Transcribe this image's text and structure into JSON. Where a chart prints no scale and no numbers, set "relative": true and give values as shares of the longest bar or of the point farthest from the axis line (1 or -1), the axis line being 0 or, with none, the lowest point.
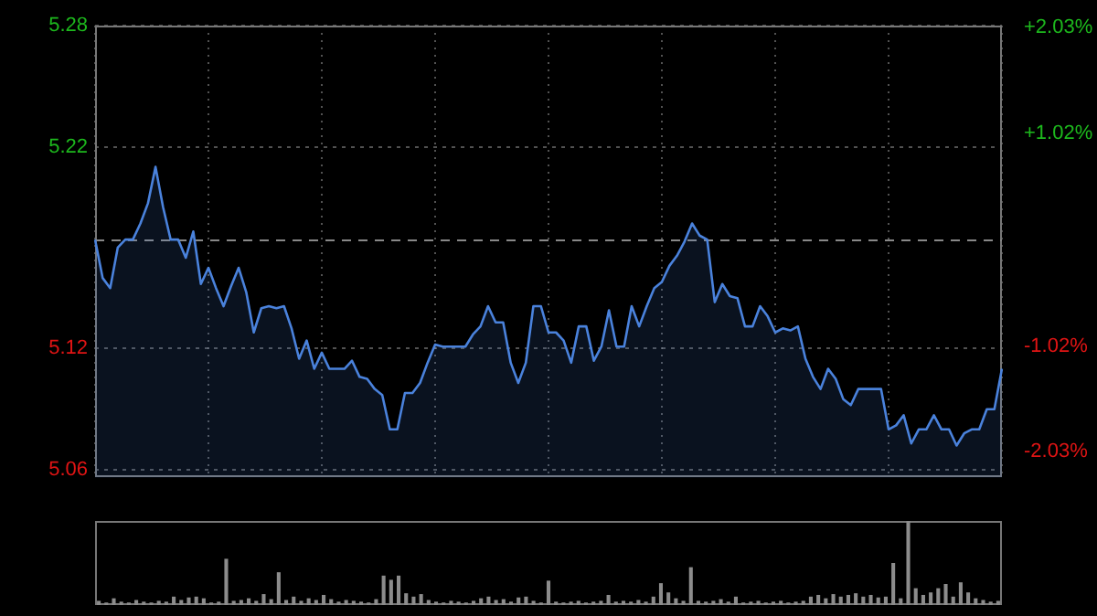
{
  "chart_data": [
    {
      "type": "area",
      "categories": [
        null,
        null,
        null,
        null,
        null,
        null,
        null,
        null,
        null,
        null,
        null,
        null,
        null,
        null,
        null,
        null,
        null,
        null,
        null,
        null,
        null,
        null,
        null,
        null,
        null,
        null,
        null,
        null,
        null,
        null,
        null,
        null,
        null,
        null,
        null,
        null,
        null,
        null,
        null,
        null,
        null,
        null,
        null,
        null,
        null,
        null,
        null,
        null,
        null,
        null,
        null,
        null,
        null,
        null,
        null,
        null,
        null,
        null,
        null,
        null,
        null,
        null,
        null,
        null,
        null,
        null,
        null,
        null,
        null,
        null,
        null,
        null,
        null,
        null,
        null,
        null,
        null,
        null,
        null,
        null,
        null,
        null,
        null,
        null,
        null,
        null,
        null,
        null,
        null,
        null,
        null,
        null,
        null,
        null,
        null,
        null,
        null,
        null,
        null,
        null,
        null,
        null,
        null,
        null,
        null,
        null,
        null,
        null,
        null,
        null,
        null,
        null,
        null,
        null,
        null,
        null,
        null,
        null,
        null,
        null,
        null
      ],
      "values": [
        5.174,
        5.155,
        5.15,
        5.17,
        5.174,
        5.174,
        5.182,
        5.192,
        5.21,
        5.19,
        5.174,
        5.174,
        5.165,
        5.178,
        5.152,
        5.16,
        5.15,
        5.141,
        5.151,
        5.16,
        5.148,
        5.128,
        5.14,
        5.141,
        5.14,
        5.141,
        5.13,
        5.115,
        5.124,
        5.11,
        5.118,
        5.11,
        5.11,
        5.11,
        5.114,
        5.106,
        5.105,
        5.1,
        5.097,
        5.08,
        5.08,
        5.098,
        5.098,
        5.103,
        5.113,
        5.122,
        5.121,
        5.121,
        5.121,
        5.121,
        5.127,
        5.131,
        5.141,
        5.133,
        5.133,
        5.113,
        5.103,
        5.113,
        5.141,
        5.141,
        5.128,
        5.128,
        5.124,
        5.113,
        5.131,
        5.131,
        5.114,
        5.121,
        5.139,
        5.121,
        5.121,
        5.141,
        5.131,
        5.141,
        5.15,
        5.153,
        5.161,
        5.166,
        5.173,
        5.182,
        5.176,
        5.174,
        5.143,
        5.152,
        5.146,
        5.145,
        5.131,
        5.131,
        5.141,
        5.136,
        5.128,
        5.13,
        5.129,
        5.131,
        5.115,
        5.106,
        5.1,
        5.11,
        5.105,
        5.095,
        5.092,
        5.1,
        5.1,
        5.1,
        5.1,
        5.08,
        5.082,
        5.087,
        5.073,
        5.08,
        5.08,
        5.087,
        5.08,
        5.08,
        5.072,
        5.078,
        5.08,
        5.08,
        5.09,
        5.09,
        5.11
      ],
      "color": "#4a82dc",
      "ylim": [
        5.056,
        5.28
      ],
      "yticks": [
        5.28,
        5.22,
        5.12,
        5.06
      ],
      "y2lim": [
        -2.28,
        2.05
      ],
      "y2ticks": [
        {
          "value": 2.03,
          "label": "+2.03%"
        },
        {
          "value": 1.02,
          "label": "+1.02%"
        },
        {
          "value": -1.02,
          "label": "-1.02%"
        },
        {
          "value": -2.03,
          "label": "-2.03%"
        }
      ],
      "ref_lines": [
        {
          "axis": "y",
          "value": 5.174,
          "color": "#888888",
          "line_style": "dashed"
        }
      ],
      "grid": true,
      "tick_labels": "y",
      "marker": "none"
    },
    {
      "type": "bar",
      "categories": [
        null,
        null,
        null,
        null,
        null,
        null,
        null,
        null,
        null,
        null,
        null,
        null,
        null,
        null,
        null,
        null,
        null,
        null,
        null,
        null,
        null,
        null,
        null,
        null,
        null,
        null,
        null,
        null,
        null,
        null,
        null,
        null,
        null,
        null,
        null,
        null,
        null,
        null,
        null,
        null,
        null,
        null,
        null,
        null,
        null,
        null,
        null,
        null,
        null,
        null,
        null,
        null,
        null,
        null,
        null,
        null,
        null,
        null,
        null,
        null,
        null,
        null,
        null,
        null,
        null,
        null,
        null,
        null,
        null,
        null,
        null,
        null,
        null,
        null,
        null,
        null,
        null,
        null,
        null,
        null,
        null,
        null,
        null,
        null,
        null,
        null,
        null,
        null,
        null,
        null,
        null,
        null,
        null,
        null,
        null,
        null,
        null,
        null,
        null,
        null,
        null,
        null,
        null,
        null,
        null,
        null,
        null,
        null,
        null,
        null,
        null,
        null,
        null,
        null,
        null,
        null,
        null,
        null,
        null,
        null,
        null
      ],
      "values": [
        0.05,
        0.03,
        0.08,
        0.04,
        0.03,
        0.06,
        0.04,
        0.03,
        0.05,
        0.04,
        0.1,
        0.06,
        0.09,
        0.1,
        0.08,
        0.03,
        0.04,
        0.55,
        0.05,
        0.06,
        0.08,
        0.05,
        0.13,
        0.07,
        0.39,
        0.06,
        0.1,
        0.05,
        0.08,
        0.06,
        0.12,
        0.07,
        0.04,
        0.06,
        0.05,
        0.04,
        0.03,
        0.07,
        0.35,
        0.3,
        0.35,
        0.14,
        0.1,
        0.13,
        0.06,
        0.04,
        0.03,
        0.05,
        0.04,
        0.03,
        0.05,
        0.08,
        0.1,
        0.06,
        0.07,
        0.04,
        0.09,
        0.1,
        0.05,
        0.03,
        0.29,
        0.04,
        0.03,
        0.04,
        0.05,
        0.03,
        0.04,
        0.05,
        0.12,
        0.04,
        0.05,
        0.04,
        0.06,
        0.04,
        0.1,
        0.26,
        0.15,
        0.08,
        0.05,
        0.45,
        0.05,
        0.04,
        0.05,
        0.07,
        0.04,
        0.1,
        0.03,
        0.04,
        0.05,
        0.03,
        0.04,
        0.05,
        0.03,
        0.04,
        0.05,
        0.1,
        0.12,
        0.08,
        0.13,
        0.1,
        0.12,
        0.14,
        0.1,
        0.12,
        0.09,
        0.1,
        0.5,
        0.08,
        1,
        0.2,
        0.12,
        0.15,
        0.2,
        0.25,
        0.1,
        0.27,
        0.15,
        0.08,
        0.06,
        0.04,
        0.05
      ],
      "color": "#8c8c8c",
      "relative": true,
      "tick_labels": false
    }
  ]
}
